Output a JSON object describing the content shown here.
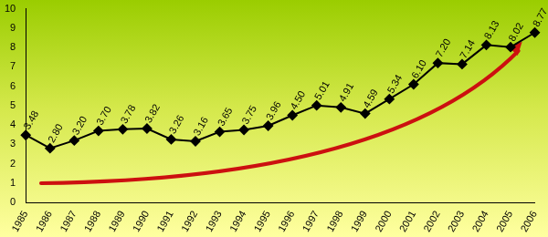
{
  "chart_data": {
    "type": "line",
    "categories": [
      "1985",
      "1986",
      "1987",
      "1988",
      "1989",
      "1990",
      "1991",
      "1992",
      "1993",
      "1994",
      "1995",
      "1996",
      "1997",
      "1998",
      "1999",
      "2000",
      "2001",
      "2002",
      "2003",
      "2004",
      "2005",
      "2006"
    ],
    "values": [
      3.48,
      2.8,
      3.2,
      3.7,
      3.78,
      3.82,
      3.26,
      3.16,
      3.65,
      3.75,
      3.96,
      4.5,
      5.01,
      4.91,
      4.59,
      5.34,
      6.1,
      7.2,
      7.14,
      8.13,
      8.02,
      8.77
    ],
    "value_labels": [
      "3.48",
      "2.80",
      "3.20",
      "3.70",
      "3.78",
      "3.82",
      "3.26",
      "3.16",
      "3.65",
      "3.75",
      "3.96",
      "4.50",
      "5.01",
      "4.91",
      "4.59",
      "5.34",
      "6.10",
      "7.20",
      "7.14",
      "8.13",
      "8.02",
      "8.77"
    ],
    "color": "#000000",
    "marker": "diamond",
    "line_style": "solid",
    "ylim": [
      0,
      10
    ],
    "yticks": [
      0,
      1,
      2,
      3,
      4,
      5,
      6,
      7,
      8,
      9,
      10
    ],
    "grid": false,
    "data_labels": true
  }
}
